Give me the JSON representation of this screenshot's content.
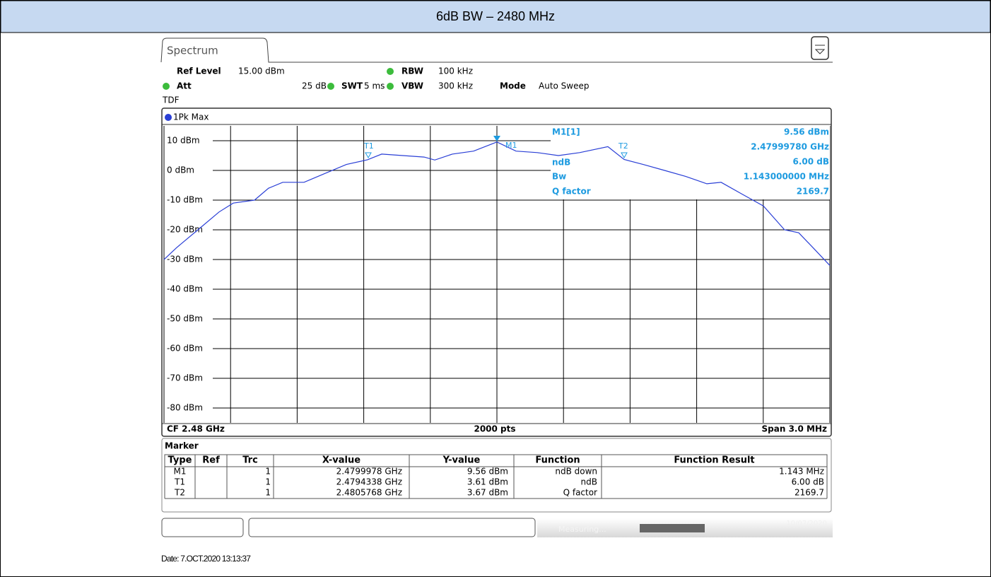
{
  "header": {
    "title": "6dB BW – 2480 MHz"
  },
  "tab": {
    "label": "Spectrum"
  },
  "settings": {
    "ref_level_label": "Ref Level",
    "ref_level": "15.00 dBm",
    "rbw_label": "RBW",
    "rbw": "100 kHz",
    "att_label": "Att",
    "att": "25 dB",
    "swt_label": "SWT",
    "swt": "5 ms",
    "vbw_label": "VBW",
    "vbw": "300 kHz",
    "mode_label": "Mode",
    "mode": "Auto Sweep",
    "tdf": "TDF",
    "trace_label": "1Pk Max"
  },
  "chart_data": {
    "type": "line",
    "ylim": [
      -85,
      15
    ],
    "xlim": [
      2.4785,
      2.4815
    ],
    "yticks": [
      {
        "value": 10,
        "label": "10 dBm"
      },
      {
        "value": 0,
        "label": "0 dBm"
      },
      {
        "value": -10,
        "label": "-10 dBm"
      },
      {
        "value": -20,
        "label": "-20 dBm"
      },
      {
        "value": -30,
        "label": "-30 dBm"
      },
      {
        "value": -40,
        "label": "-40 dBm"
      },
      {
        "value": -50,
        "label": "-50 dBm"
      },
      {
        "value": -60,
        "label": "-60 dBm"
      },
      {
        "value": -70,
        "label": "-70 dBm"
      },
      {
        "value": -80,
        "label": "-80 dBm"
      }
    ],
    "grid": true,
    "series": [
      {
        "color": "#2a3fd6",
        "x": [
          2.4785,
          2.478557,
          2.478653,
          2.478748,
          2.478812,
          2.478908,
          2.478971,
          2.479035,
          2.479131,
          2.479226,
          2.479322,
          2.479417,
          2.479481,
          2.479576,
          2.479672,
          2.47972,
          2.479799,
          2.479895,
          2.48,
          2.480086,
          2.480182,
          2.480277,
          2.480373,
          2.4805,
          2.480573,
          2.480659,
          2.480755,
          2.48085,
          2.480946,
          2.48101,
          2.481105,
          2.481201,
          2.481296,
          2.48136,
          2.481424,
          2.4815
        ],
        "values": [
          -30,
          -26,
          -20,
          -14,
          -11,
          -10,
          -6,
          -4,
          -4,
          -1,
          2,
          3.6,
          5.5,
          5,
          4.5,
          3.5,
          5.5,
          6.5,
          9.56,
          6.5,
          6,
          5,
          6,
          8,
          3.7,
          2,
          0,
          -2,
          -4.5,
          -4,
          -8,
          -12,
          -20,
          -21,
          -26,
          -32
        ]
      }
    ],
    "footer_left": "CF 2.48 GHz",
    "footer_center": "2000 pts",
    "footer_right": "Span 3.0 MHz"
  },
  "marker_info": {
    "labels": [
      "M1[1]",
      "ndB",
      "Bw",
      "Q factor"
    ],
    "values": [
      "9.56 dBm",
      "2.47999780 GHz",
      "6.00 dB",
      "1.143000000 MHz",
      "2169.7"
    ]
  },
  "markers": {
    "t1": "T1",
    "m1": "M1",
    "t2": "T2"
  },
  "table": {
    "title": "Marker",
    "columns": [
      "Type",
      "Ref",
      "Trc",
      "X-value",
      "Y-value",
      "Function",
      "Function Result"
    ],
    "rows": [
      [
        "M1",
        "",
        "1",
        "2.4799978 GHz",
        "9.56 dBm",
        "ndB down",
        "1.143 MHz"
      ],
      [
        "T1",
        "",
        "1",
        "2.4794338 GHz",
        "3.61 dBm",
        "ndB",
        "6.00 dB"
      ],
      [
        "T2",
        "",
        "1",
        "2.4805768 GHz",
        "3.67 dBm",
        "Q factor",
        "2169.7"
      ]
    ]
  },
  "status": {
    "state": "Measuring...",
    "date": "10/07/2020"
  },
  "date_line": "Date: 7.OCT.2020  13:13:37"
}
